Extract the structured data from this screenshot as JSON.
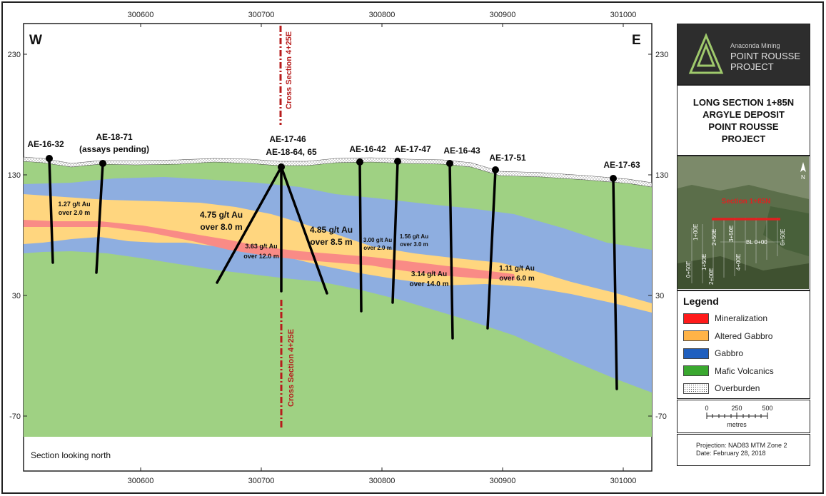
{
  "title_block": {
    "title": "LONG SECTION 1+85N\nARGYLE DEPOSIT\nPOINT ROUSSE\nPROJECT"
  },
  "logo": {
    "company": "Anaconda Mining",
    "line1": "POINT ROUSSE",
    "line2": "PROJECT"
  },
  "section": {
    "west_label": "W",
    "east_label": "E",
    "footer_note": "Section looking north",
    "x_ticks": [
      "300600",
      "300700",
      "300800",
      "300900",
      "301000"
    ],
    "y_ticks": [
      "230",
      "130",
      "30",
      "-70"
    ],
    "cross_section_label": "Cross Section 4+25E"
  },
  "drill_holes": [
    {
      "id": "AE-16-32",
      "label": "AE-16-32",
      "sublabel": ""
    },
    {
      "id": "AE-18-71",
      "label": "AE-18-71",
      "sublabel": "(assays pending)"
    },
    {
      "id": "AE-17-46",
      "label": "AE-17-46",
      "sublabel": "AE-18-64, 65"
    },
    {
      "id": "AE-16-42",
      "label": "AE-16-42",
      "sublabel": ""
    },
    {
      "id": "AE-17-47",
      "label": "AE-17-47",
      "sublabel": ""
    },
    {
      "id": "AE-16-43",
      "label": "AE-16-43",
      "sublabel": ""
    },
    {
      "id": "AE-17-51",
      "label": "AE-17-51",
      "sublabel": ""
    },
    {
      "id": "AE-17-63",
      "label": "AE-17-63",
      "sublabel": ""
    }
  ],
  "intercepts": [
    {
      "grade": "1.27 g/t Au",
      "over": "over 2.0 m"
    },
    {
      "grade": "4.75 g/t Au",
      "over": "over 8.0 m"
    },
    {
      "grade": "3.63 g/t Au",
      "over": "over 12.0 m"
    },
    {
      "grade": "4.85 g/t Au",
      "over": "over 8.5 m"
    },
    {
      "grade": "3.00 g/t Au",
      "over": "over 2.0 m"
    },
    {
      "grade": "1.56 g/t Au",
      "over": "over 3.0 m"
    },
    {
      "grade": "3.14 g/t Au",
      "over": "over 14.0 m"
    },
    {
      "grade": "1.11 g/t Au",
      "over": "over 6.0 m"
    }
  ],
  "inset_map": {
    "section_label": "Section 1+85N",
    "grid_labels": [
      "0+50E",
      "1+00E",
      "1+50E",
      "2+00E",
      "2+50E",
      "3+50E",
      "4+00E",
      "BL 0+00",
      "6+50E"
    ],
    "north_arrow": "N"
  },
  "legend": {
    "title": "Legend",
    "items": [
      {
        "label": "Mineralization",
        "color": "#ff1a1a"
      },
      {
        "label": "Altered Gabbro",
        "color": "#ffb347"
      },
      {
        "label": "Gabbro",
        "color": "#1f5fbf"
      },
      {
        "label": "Mafic Volcanics",
        "color": "#3aa82f"
      },
      {
        "label": "Overburden",
        "color": "#ffffff"
      }
    ]
  },
  "scale_bar": {
    "ticks": [
      "0",
      "250",
      "500"
    ],
    "unit": "metres"
  },
  "projection": {
    "line1": "Projection: NAD83 MTM Zone 2",
    "line2": "Date: February 28, 2018"
  },
  "colors": {
    "mafic_volcanics": "#9fd183",
    "gabbro": "#8eaee0",
    "altered_gabbro": "#ffd67f",
    "mineralization": "#f98b86",
    "cross_section": "#b71c1c"
  }
}
